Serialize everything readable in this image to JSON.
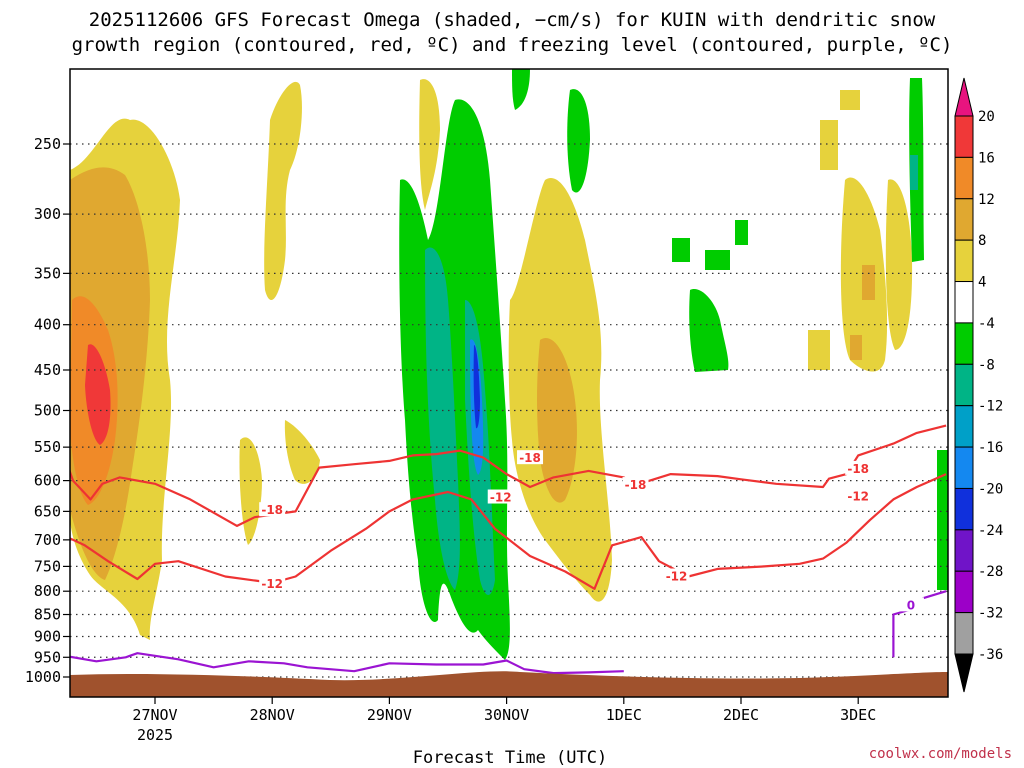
{
  "chart_data": {
    "type": "heatmap",
    "title_lines": [
      "2025112606 GFS Forecast Omega (shaded, −cm/s) for KUIN with dendritic snow",
      "growth region (contoured, red, ºC) and freezing level (contoured, purple, ºC)"
    ],
    "xlabel": "Forecast Time (UTC)",
    "x_ticks": [
      "27NOV",
      "28NOV",
      "29NOV",
      "30NOV",
      "1DEC",
      "2DEC",
      "3DEC"
    ],
    "x_year_label": "2025",
    "y_ticks": [
      250,
      300,
      350,
      400,
      450,
      500,
      550,
      600,
      650,
      700,
      750,
      800,
      850,
      900,
      950,
      1000
    ],
    "colorbar": {
      "labels": [
        20,
        16,
        12,
        8,
        4,
        -4,
        -8,
        -12,
        -16,
        -20,
        -24,
        -28,
        -32,
        -36
      ],
      "colors": [
        "#e8147f",
        "#f03838",
        "#f08a28",
        "#e0a830",
        "#e6d23c",
        "#ffffff",
        "#00cc00",
        "#00b486",
        "#00a0c8",
        "#1488f0",
        "#1030dc",
        "#7014c8",
        "#9c00c8",
        "#a0a0a0",
        "#000000"
      ]
    },
    "contours": [
      {
        "label": "-18",
        "color": "#ee3333",
        "points": [
          [
            26.2,
            550
          ],
          [
            26.3,
            600
          ],
          [
            26.45,
            630
          ],
          [
            26.55,
            605
          ],
          [
            26.7,
            595
          ],
          [
            27,
            605
          ],
          [
            27.3,
            630
          ],
          [
            27.7,
            675
          ],
          [
            27.85,
            660
          ],
          [
            28.2,
            650
          ],
          [
            28.4,
            580
          ],
          [
            28.7,
            575
          ],
          [
            29,
            570
          ],
          [
            29.2,
            562
          ],
          [
            29.4,
            560
          ],
          [
            29.6,
            555
          ],
          [
            29.8,
            565
          ],
          [
            30,
            590
          ],
          [
            30.2,
            610
          ],
          [
            30.4,
            595
          ],
          [
            30.7,
            585
          ],
          [
            31,
            595
          ],
          [
            31.1,
            607
          ],
          [
            31.4,
            590
          ],
          [
            31.8,
            593
          ],
          [
            32,
            598
          ],
          [
            32.3,
            605
          ],
          [
            32.7,
            610
          ],
          [
            32.75,
            597
          ],
          [
            32.9,
            590
          ],
          [
            33,
            562
          ],
          [
            33.3,
            545
          ],
          [
            33.5,
            530
          ],
          [
            33.75,
            520
          ]
        ]
      },
      {
        "label": "-12",
        "color": "#ee3333",
        "points": [
          [
            26.2,
            690
          ],
          [
            26.4,
            710
          ],
          [
            26.6,
            740
          ],
          [
            26.85,
            775
          ],
          [
            27,
            745
          ],
          [
            27.2,
            740
          ],
          [
            27.6,
            770
          ],
          [
            28,
            783
          ],
          [
            28.2,
            770
          ],
          [
            28.5,
            720
          ],
          [
            28.8,
            680
          ],
          [
            29,
            650
          ],
          [
            29.2,
            630
          ],
          [
            29.5,
            618
          ],
          [
            29.7,
            630
          ],
          [
            29.9,
            680
          ],
          [
            30.2,
            730
          ],
          [
            30.5,
            760
          ],
          [
            30.75,
            795
          ],
          [
            30.9,
            710
          ],
          [
            31.15,
            695
          ],
          [
            31.3,
            740
          ],
          [
            31.55,
            770
          ],
          [
            31.8,
            755
          ],
          [
            32.2,
            750
          ],
          [
            32.5,
            745
          ],
          [
            32.7,
            735
          ],
          [
            32.9,
            705
          ],
          [
            33.1,
            665
          ],
          [
            33.3,
            630
          ],
          [
            33.5,
            610
          ],
          [
            33.75,
            590
          ]
        ]
      },
      {
        "label": "0",
        "color": "#9b14d2",
        "points": [
          [
            26.2,
            945
          ],
          [
            26.5,
            960
          ],
          [
            26.75,
            950
          ],
          [
            26.85,
            940
          ],
          [
            27.2,
            955
          ],
          [
            27.5,
            975
          ],
          [
            27.8,
            960
          ],
          [
            28.1,
            965
          ],
          [
            28.3,
            975
          ],
          [
            28.7,
            985
          ],
          [
            29,
            965
          ],
          [
            29.4,
            968
          ],
          [
            29.8,
            968
          ],
          [
            30,
            958
          ],
          [
            30.15,
            980
          ],
          [
            30.4,
            990
          ],
          [
            30.7,
            988
          ],
          [
            31,
            985
          ]
        ]
      },
      {
        "label": "0",
        "color": "#9b14d2",
        "points": [
          [
            33.3,
            950
          ],
          [
            33.3,
            850
          ],
          [
            33.5,
            835
          ],
          [
            33.55,
            815
          ],
          [
            33.75,
            800
          ]
        ]
      }
    ]
  },
  "credit": "coolwx.com/models"
}
